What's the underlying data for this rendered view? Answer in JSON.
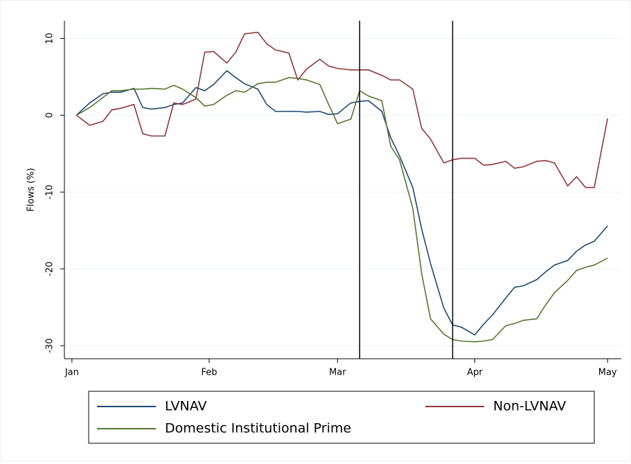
{
  "chart_data": {
    "type": "line",
    "y_label": "Flows (%)",
    "x": [
      2,
      5,
      8,
      10,
      12,
      15,
      17,
      19,
      22,
      24,
      26,
      29,
      31,
      33,
      36,
      38,
      40,
      43,
      45,
      47,
      50,
      52,
      54,
      57,
      59,
      61,
      64,
      66,
      68,
      71,
      73,
      75,
      78,
      80,
      82,
      85,
      87,
      89,
      92,
      94,
      96,
      99,
      101,
      103,
      106,
      108,
      110,
      113,
      115,
      117,
      119,
      122
    ],
    "series": [
      {
        "name": "LVNAV",
        "color": "#1a476f",
        "values": [
          0,
          1.6,
          2.8,
          3.0,
          3.0,
          3.5,
          1.0,
          0.8,
          1.0,
          1.4,
          1.6,
          3.6,
          3.2,
          4.0,
          5.8,
          4.9,
          4.1,
          3.4,
          1.4,
          0.5,
          0.5,
          0.5,
          0.4,
          0.5,
          0.1,
          0.2,
          1.6,
          1.8,
          1.9,
          0.5,
          -2.9,
          -5.3,
          -9.4,
          -14.8,
          -19.3,
          -25.1,
          -27.3,
          -27.6,
          -28.6,
          -27.2,
          -26.0,
          -23.8,
          -22.4,
          -22.2,
          -21.4,
          -20.4,
          -19.5,
          -18.9,
          -17.7,
          -16.9,
          -16.4,
          -14.4
        ]
      },
      {
        "name": "Non-LVNAV",
        "color": "#90353b",
        "values": [
          0,
          -1.3,
          -0.8,
          0.7,
          0.9,
          1.4,
          -2.4,
          -2.7,
          -2.7,
          1.6,
          1.4,
          2.1,
          8.2,
          8.3,
          6.8,
          8.2,
          10.6,
          10.8,
          9.3,
          8.5,
          8.1,
          4.6,
          6.0,
          7.3,
          6.4,
          6.1,
          5.9,
          5.9,
          5.9,
          5.2,
          4.6,
          4.6,
          3.4,
          -1.7,
          -3.1,
          -6.2,
          -5.8,
          -5.6,
          -5.6,
          -6.5,
          -6.4,
          -6.0,
          -6.9,
          -6.7,
          -6.0,
          -5.9,
          -6.2,
          -9.2,
          -8.0,
          -9.4,
          -9.4,
          -0.4
        ]
      },
      {
        "name": "Domestic Institutional Prime",
        "color": "#55752f",
        "values": [
          0,
          1.0,
          2.3,
          3.2,
          3.2,
          3.4,
          3.4,
          3.5,
          3.4,
          3.9,
          3.4,
          2.3,
          1.2,
          1.4,
          2.6,
          3.2,
          3.0,
          4.1,
          4.3,
          4.3,
          4.9,
          4.8,
          4.6,
          4.0,
          1.4,
          -1.1,
          -0.5,
          3.2,
          2.5,
          1.9,
          -4.0,
          -5.8,
          -12.1,
          -20.6,
          -26.5,
          -28.5,
          -29.2,
          -29.4,
          -29.5,
          -29.4,
          -29.2,
          -27.4,
          -27.1,
          -26.7,
          -26.5,
          -24.7,
          -23.1,
          -21.5,
          -20.2,
          -19.8,
          -19.5,
          -18.6
        ]
      }
    ],
    "xlim": [
      -0.7,
      125.1
    ],
    "xticks": [
      {
        "value": 1,
        "label": "Jan"
      },
      {
        "value": 32,
        "label": "Feb"
      },
      {
        "value": 61,
        "label": "Mar"
      },
      {
        "value": 92,
        "label": "Apr"
      },
      {
        "value": 122,
        "label": "May"
      }
    ],
    "ylim": [
      -31.7,
      12.3
    ],
    "yticks": [
      -30,
      -20,
      -10,
      0,
      10
    ],
    "vlines": [
      66,
      87
    ],
    "vline_color": "#000000",
    "grid": true,
    "legend": "bottom"
  }
}
